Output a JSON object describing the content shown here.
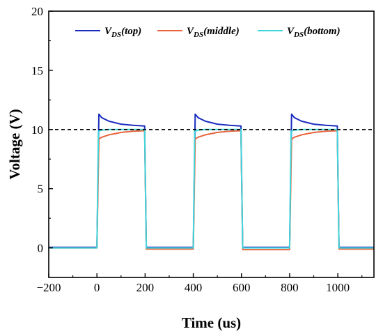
{
  "chart_data": {
    "type": "line",
    "title": "",
    "xlabel": "Time (us)",
    "ylabel": "Voltage (V)",
    "xlim": [
      -200,
      1150
    ],
    "ylim": [
      -2.5,
      20
    ],
    "xticks": [
      -200,
      0,
      200,
      400,
      600,
      800,
      1000
    ],
    "yticks": [
      0,
      5,
      10,
      15,
      20
    ],
    "xtick_labels": [
      "−200",
      "0",
      "200",
      "400",
      "600",
      "800",
      "1000"
    ],
    "ytick_labels": [
      "0",
      "5",
      "10",
      "15",
      "20"
    ],
    "grid": false,
    "legend_position": "top",
    "reference_line": {
      "y": 10,
      "style": "dashed",
      "color": "#000000"
    },
    "series": [
      {
        "name": "V_DS(top)",
        "legend_main": "V",
        "legend_sub": "DS",
        "legend_suffix": "(top)",
        "color": "#1a2dbf",
        "x": [
          -200,
          0,
          8,
          20,
          50,
          100,
          150,
          198,
          205,
          400,
          408,
          420,
          450,
          500,
          550,
          598,
          605,
          800,
          808,
          820,
          850,
          900,
          950,
          998,
          1005,
          1150
        ],
        "y": [
          0.05,
          0.05,
          11.3,
          11.0,
          10.7,
          10.45,
          10.35,
          10.3,
          0.05,
          0.05,
          11.3,
          11.0,
          10.7,
          10.45,
          10.35,
          10.3,
          0.05,
          0.05,
          11.3,
          11.0,
          10.7,
          10.45,
          10.35,
          10.3,
          0.05,
          0.05
        ]
      },
      {
        "name": "V_DS(middle)",
        "legend_main": "V",
        "legend_sub": "DS",
        "legend_suffix": "(middle)",
        "color": "#e8643c",
        "x": [
          -200,
          0,
          8,
          20,
          50,
          100,
          150,
          198,
          205,
          400,
          408,
          420,
          450,
          500,
          550,
          598,
          605,
          800,
          808,
          820,
          850,
          900,
          950,
          998,
          1005,
          1150
        ],
        "y": [
          0.0,
          0.0,
          9.2,
          9.35,
          9.55,
          9.75,
          9.85,
          9.9,
          -0.1,
          -0.1,
          9.2,
          9.35,
          9.55,
          9.75,
          9.85,
          9.9,
          -0.15,
          -0.15,
          9.2,
          9.35,
          9.55,
          9.75,
          9.85,
          9.9,
          -0.1,
          -0.1
        ]
      },
      {
        "name": "V_DS(bottom)",
        "legend_main": "V",
        "legend_sub": "DS",
        "legend_suffix": "(bottom)",
        "color": "#3fd6dc",
        "x": [
          -200,
          0,
          6,
          20,
          50,
          100,
          150,
          198,
          205,
          400,
          406,
          420,
          450,
          500,
          550,
          598,
          605,
          800,
          806,
          820,
          850,
          900,
          950,
          998,
          1005,
          1150
        ],
        "y": [
          0.0,
          0.0,
          9.85,
          9.95,
          10.0,
          10.0,
          10.0,
          10.0,
          0.0,
          0.0,
          9.85,
          9.95,
          10.0,
          10.0,
          10.0,
          10.0,
          0.0,
          0.0,
          9.85,
          9.95,
          10.0,
          10.0,
          10.0,
          10.0,
          0.0,
          0.0
        ]
      }
    ]
  }
}
